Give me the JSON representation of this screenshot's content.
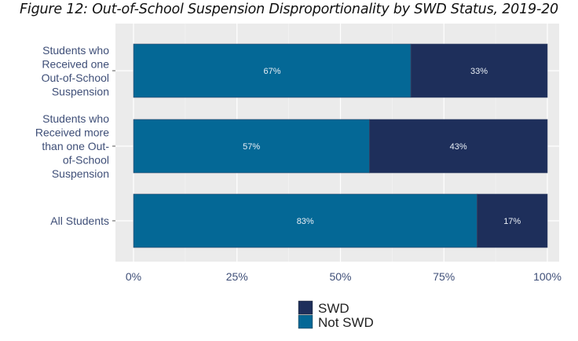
{
  "chart_data": {
    "type": "bar",
    "orientation": "horizontal",
    "stacked": true,
    "title": "Figure 12: Out-of-School Suspension Disproportionality by SWD Status, 2019-20",
    "categories": [
      [
        "Students who",
        "Received one",
        "Out-of-School",
        "Suspension"
      ],
      [
        "Students who",
        "Received more",
        "than one Out-",
        "of-School",
        "Suspension"
      ],
      [
        "All Students"
      ]
    ],
    "series": [
      {
        "name": "Not SWD",
        "color": "#046896",
        "values": [
          67,
          57,
          83
        ],
        "labels": [
          "67%",
          "57%",
          "83%"
        ]
      },
      {
        "name": "SWD",
        "color": "#1e2f5b",
        "values": [
          33,
          43,
          17
        ],
        "labels": [
          "33%",
          "43%",
          "17%"
        ]
      }
    ],
    "xlim": [
      0,
      100
    ],
    "xticks": [
      "0%",
      "25%",
      "50%",
      "75%",
      "100%"
    ],
    "xtick_values": [
      0,
      25,
      50,
      75,
      100
    ],
    "grid": true,
    "legend": {
      "placement": "bottom",
      "entries": [
        "SWD",
        "Not SWD"
      ]
    }
  }
}
